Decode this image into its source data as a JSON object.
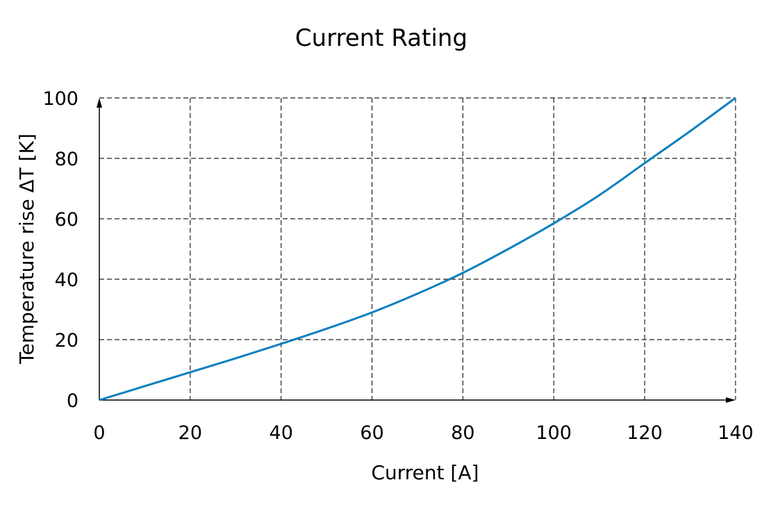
{
  "chart_data": {
    "type": "line",
    "title": "Current Rating",
    "xlabel": "Current [A]",
    "ylabel": "Temperature rise ΔT [K]",
    "xlim": [
      0,
      140
    ],
    "ylim": [
      0,
      100
    ],
    "xticks": [
      "0",
      "20",
      "40",
      "60",
      "80",
      "100",
      "120",
      "140"
    ],
    "yticks": [
      "0",
      "20",
      "40",
      "60",
      "80",
      "100"
    ],
    "grid": true,
    "grid_style": "dashed",
    "line_color": "#0a7fc0",
    "series": [
      {
        "x": [
          0,
          10,
          20,
          30,
          40,
          50,
          60,
          70,
          80,
          90,
          100,
          110,
          120,
          130,
          140
        ],
        "values": [
          0,
          4.6,
          9.2,
          13.8,
          18.6,
          23.6,
          29.0,
          35.2,
          42.1,
          50.0,
          58.5,
          67.8,
          78.4,
          89.0,
          100
        ]
      }
    ]
  }
}
